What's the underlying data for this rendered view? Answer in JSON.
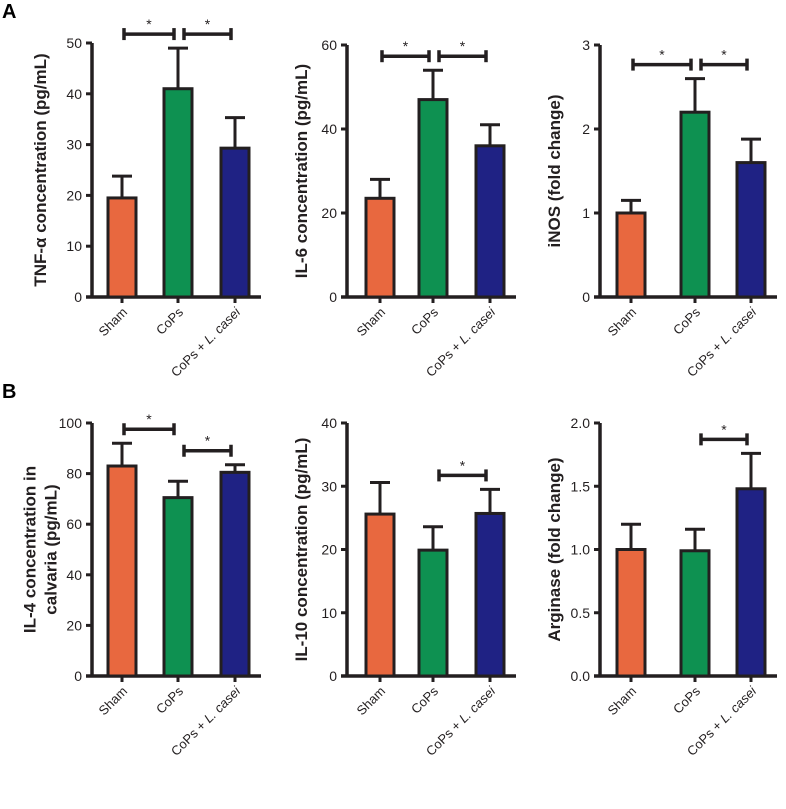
{
  "colors": {
    "Sham": "#e8683f",
    "CoPs": "#0e9151",
    "CoPs + L. casei": "#1f2284",
    "axis": "#231f20"
  },
  "panel_letters": [
    "A",
    "B"
  ],
  "chart_data": [
    {
      "type": "bar",
      "panel": "A",
      "ylabel": "TNF-α concentration (pg/mL)",
      "ylim": [
        0,
        50
      ],
      "yticks": [
        0,
        10,
        20,
        30,
        40,
        50
      ],
      "categories": [
        "Sham",
        "CoPs",
        "CoPs + L. casei"
      ],
      "values": [
        19.5,
        41,
        29.3
      ],
      "errors": [
        4.3,
        8,
        6
      ],
      "significance": [
        {
          "pair": [
            0,
            1
          ],
          "label": "*"
        },
        {
          "pair": [
            1,
            2
          ],
          "label": "*"
        }
      ]
    },
    {
      "type": "bar",
      "panel": "A",
      "ylabel": "IL-6 concentration (pg/mL)",
      "ylim": [
        0,
        60
      ],
      "yticks": [
        0,
        20,
        40,
        60
      ],
      "categories": [
        "Sham",
        "CoPs",
        "CoPs + L. casei"
      ],
      "values": [
        23.5,
        47,
        36
      ],
      "errors": [
        4.5,
        7,
        5
      ],
      "significance": [
        {
          "pair": [
            0,
            1
          ],
          "label": "*"
        },
        {
          "pair": [
            1,
            2
          ],
          "label": "*"
        }
      ]
    },
    {
      "type": "bar",
      "panel": "A",
      "ylabel": "iNOS (fold change)",
      "ylim": [
        0,
        3
      ],
      "yticks": [
        0,
        1,
        2,
        3
      ],
      "categories": [
        "Sham",
        "CoPs",
        "CoPs + L. casei"
      ],
      "values": [
        1.0,
        2.2,
        1.6
      ],
      "errors": [
        0.15,
        0.4,
        0.28
      ],
      "significance": [
        {
          "pair": [
            0,
            1
          ],
          "label": "*"
        },
        {
          "pair": [
            1,
            2
          ],
          "label": "*"
        }
      ]
    },
    {
      "type": "bar",
      "panel": "B",
      "ylabel": "IL-4 concentration in calvaria (pg/mL)",
      "ylabel_lines": [
        "IL-4 concentration in",
        "calvaria (pg/mL)"
      ],
      "ylim": [
        0,
        100
      ],
      "yticks": [
        0,
        20,
        40,
        60,
        80,
        100
      ],
      "categories": [
        "Sham",
        "CoPs",
        "CoPs + L. casei"
      ],
      "values": [
        83,
        70.5,
        80.5
      ],
      "errors": [
        9,
        6.5,
        3
      ],
      "significance": [
        {
          "pair": [
            0,
            1
          ],
          "label": "*"
        },
        {
          "pair": [
            1,
            2
          ],
          "label": "*"
        }
      ]
    },
    {
      "type": "bar",
      "panel": "B",
      "ylabel": "IL-10 concentration (pg/mL)",
      "ylim": [
        0,
        40
      ],
      "yticks": [
        0,
        10,
        20,
        30,
        40
      ],
      "categories": [
        "Sham",
        "CoPs",
        "CoPs + L. casei"
      ],
      "values": [
        25.6,
        19.9,
        25.7
      ],
      "errors": [
        5,
        3.7,
        3.8
      ],
      "significance": [
        {
          "pair": [
            1,
            2
          ],
          "label": "*"
        }
      ]
    },
    {
      "type": "bar",
      "panel": "B",
      "ylabel": "Arginase (fold change)",
      "ylim": [
        0,
        2
      ],
      "yticks": [
        "0.0",
        "0.5",
        "1.0",
        "1.5",
        "2.0"
      ],
      "categories": [
        "Sham",
        "CoPs",
        "CoPs + L. casei"
      ],
      "values": [
        1.0,
        0.99,
        1.48
      ],
      "errors": [
        0.2,
        0.17,
        0.28
      ],
      "significance": [
        {
          "pair": [
            1,
            2
          ],
          "label": "*"
        }
      ]
    }
  ]
}
